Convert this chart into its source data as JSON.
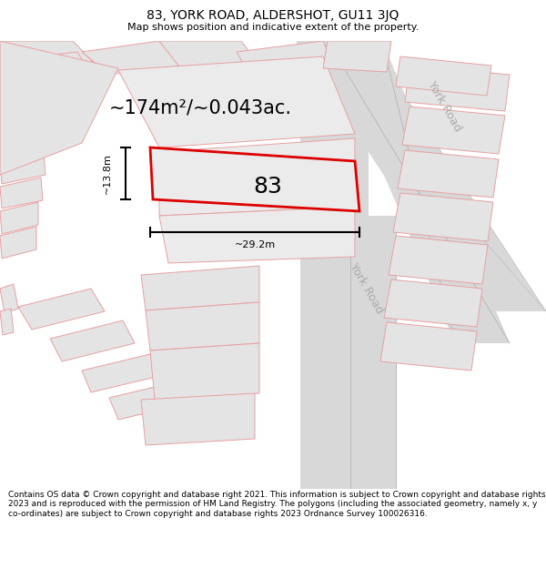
{
  "title": "83, YORK ROAD, ALDERSHOT, GU11 3JQ",
  "subtitle": "Map shows position and indicative extent of the property.",
  "footer": "Contains OS data © Crown copyright and database right 2021. This information is subject to Crown copyright and database rights 2023 and is reproduced with the permission of HM Land Registry. The polygons (including the associated geometry, namely x, y co-ordinates) are subject to Crown copyright and database rights 2023 Ordnance Survey 100026316.",
  "area_label": "~174m²/~0.043ac.",
  "width_label": "~29.2m",
  "height_label": "~13.8m",
  "number_label": "83",
  "map_bg": "#f8f8f8",
  "road_fill": "#d8d8d8",
  "road_edge": "#cccccc",
  "building_fill": "#e4e4e4",
  "plot_fill": "#ebebeb",
  "parcel_edge": "#e8a0a0",
  "highlight_edge": "#dd0000",
  "road_label_color": "#aaaaaa",
  "york_road_label": "York Road",
  "title_fontsize": 10,
  "subtitle_fontsize": 8,
  "footer_fontsize": 6.5,
  "area_fontsize": 15,
  "dim_fontsize": 8,
  "number_fontsize": 18
}
